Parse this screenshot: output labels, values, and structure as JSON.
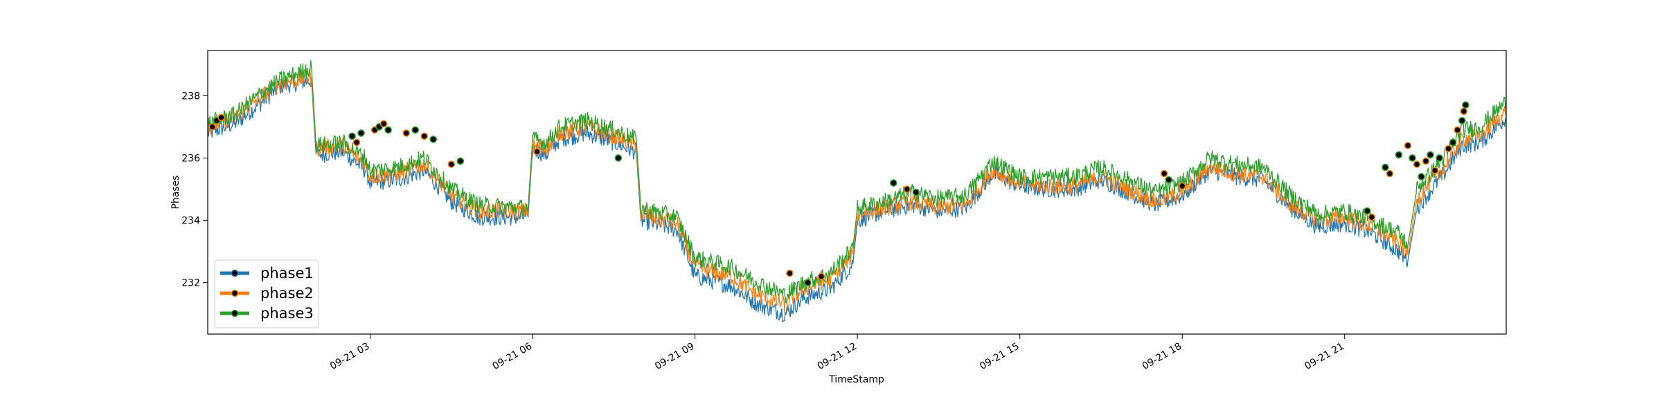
{
  "chart_data": {
    "type": "line",
    "title": "",
    "xlabel": "TimeStamp",
    "ylabel": "Phases",
    "x_range": [
      "09-21 00:00",
      "09-21 23:59"
    ],
    "ylim": [
      230.35,
      239.45
    ],
    "x_ticks": [
      "09-21 03",
      "09-21 06",
      "09-21 09",
      "09-21 12",
      "09-21 15",
      "09-21 18",
      "09-21 21"
    ],
    "y_ticks": [
      232,
      234,
      236,
      238
    ],
    "grid": false,
    "legend_position": "lower-left",
    "series": [
      {
        "name": "phase1",
        "color": "#1f77b4",
        "points": [
          [
            "00:00",
            236.8
          ],
          [
            "00:30",
            237.1
          ],
          [
            "01:00",
            237.8
          ],
          [
            "01:20",
            238.3
          ],
          [
            "01:55",
            238.5
          ],
          [
            "02:00",
            236.1
          ],
          [
            "02:30",
            236.2
          ],
          [
            "02:55",
            235.6
          ],
          [
            "03:00",
            235.2
          ],
          [
            "03:30",
            235.3
          ],
          [
            "04:00",
            235.6
          ],
          [
            "04:30",
            234.6
          ],
          [
            "05:00",
            234.1
          ],
          [
            "05:55",
            234.1
          ],
          [
            "06:00",
            236.3
          ],
          [
            "06:15",
            236.1
          ],
          [
            "06:30",
            236.6
          ],
          [
            "07:00",
            236.8
          ],
          [
            "07:30",
            236.5
          ],
          [
            "07:55",
            236.2
          ],
          [
            "08:00",
            234.0
          ],
          [
            "08:40",
            233.7
          ],
          [
            "09:00",
            232.2
          ],
          [
            "09:40",
            231.9
          ],
          [
            "10:10",
            231.3
          ],
          [
            "10:40",
            231.0
          ],
          [
            "11:00",
            231.5
          ],
          [
            "11:30",
            231.8
          ],
          [
            "11:55",
            232.6
          ],
          [
            "12:00",
            234.0
          ],
          [
            "12:30",
            234.3
          ],
          [
            "13:00",
            234.5
          ],
          [
            "13:30",
            234.3
          ],
          [
            "14:00",
            234.4
          ],
          [
            "14:30",
            235.5
          ],
          [
            "15:00",
            235.1
          ],
          [
            "15:30",
            235.0
          ],
          [
            "16:00",
            235.0
          ],
          [
            "16:30",
            235.3
          ],
          [
            "17:00",
            234.9
          ],
          [
            "17:30",
            234.5
          ],
          [
            "18:00",
            234.8
          ],
          [
            "18:30",
            235.6
          ],
          [
            "19:00",
            235.4
          ],
          [
            "19:30",
            235.3
          ],
          [
            "20:00",
            234.4
          ],
          [
            "20:30",
            233.8
          ],
          [
            "21:00",
            233.9
          ],
          [
            "21:30",
            233.6
          ],
          [
            "22:00",
            233.0
          ],
          [
            "22:10",
            232.7
          ],
          [
            "22:20",
            234.4
          ],
          [
            "22:50",
            235.5
          ],
          [
            "23:10",
            236.4
          ],
          [
            "23:30",
            236.5
          ],
          [
            "23:59",
            237.3
          ]
        ]
      },
      {
        "name": "phase2",
        "color": "#ff7f0e",
        "points": [
          [
            "00:00",
            237.0
          ],
          [
            "00:30",
            237.3
          ],
          [
            "01:00",
            238.0
          ],
          [
            "01:20",
            238.4
          ],
          [
            "01:55",
            238.6
          ],
          [
            "02:00",
            236.3
          ],
          [
            "02:30",
            236.4
          ],
          [
            "02:55",
            235.8
          ],
          [
            "03:00",
            235.4
          ],
          [
            "03:30",
            235.5
          ],
          [
            "04:00",
            235.8
          ],
          [
            "04:30",
            234.8
          ],
          [
            "05:00",
            234.3
          ],
          [
            "05:55",
            234.3
          ],
          [
            "06:00",
            236.4
          ],
          [
            "06:15",
            236.3
          ],
          [
            "06:30",
            236.8
          ],
          [
            "07:00",
            237.0
          ],
          [
            "07:30",
            236.7
          ],
          [
            "07:55",
            236.4
          ],
          [
            "08:00",
            234.2
          ],
          [
            "08:40",
            233.9
          ],
          [
            "09:00",
            232.5
          ],
          [
            "09:40",
            232.2
          ],
          [
            "10:10",
            231.6
          ],
          [
            "10:40",
            231.3
          ],
          [
            "11:00",
            231.8
          ],
          [
            "11:30",
            232.1
          ],
          [
            "11:55",
            232.9
          ],
          [
            "12:00",
            234.2
          ],
          [
            "12:30",
            234.4
          ],
          [
            "13:00",
            234.6
          ],
          [
            "13:30",
            234.4
          ],
          [
            "14:00",
            234.5
          ],
          [
            "14:30",
            235.6
          ],
          [
            "15:00",
            235.2
          ],
          [
            "15:30",
            235.1
          ],
          [
            "16:00",
            235.1
          ],
          [
            "16:30",
            235.4
          ],
          [
            "17:00",
            235.0
          ],
          [
            "17:30",
            234.6
          ],
          [
            "18:00",
            234.9
          ],
          [
            "18:30",
            235.7
          ],
          [
            "19:00",
            235.5
          ],
          [
            "19:30",
            235.4
          ],
          [
            "20:00",
            234.5
          ],
          [
            "20:30",
            234.0
          ],
          [
            "21:00",
            234.1
          ],
          [
            "21:30",
            233.8
          ],
          [
            "22:00",
            233.3
          ],
          [
            "22:10",
            232.9
          ],
          [
            "22:20",
            234.7
          ],
          [
            "22:50",
            235.7
          ],
          [
            "23:10",
            236.6
          ],
          [
            "23:30",
            236.7
          ],
          [
            "23:59",
            237.5
          ]
        ]
      },
      {
        "name": "phase3",
        "color": "#2ca02c",
        "points": [
          [
            "00:00",
            237.1
          ],
          [
            "00:30",
            237.4
          ],
          [
            "01:00",
            238.1
          ],
          [
            "01:20",
            238.5
          ],
          [
            "01:55",
            238.9
          ],
          [
            "02:00",
            236.4
          ],
          [
            "02:30",
            236.5
          ],
          [
            "02:55",
            236.0
          ],
          [
            "03:00",
            235.6
          ],
          [
            "03:30",
            235.7
          ],
          [
            "04:00",
            236.0
          ],
          [
            "04:30",
            235.0
          ],
          [
            "05:00",
            234.5
          ],
          [
            "05:55",
            234.4
          ],
          [
            "06:00",
            236.6
          ],
          [
            "06:15",
            236.5
          ],
          [
            "06:30",
            237.0
          ],
          [
            "07:00",
            237.2
          ],
          [
            "07:30",
            236.9
          ],
          [
            "07:55",
            236.6
          ],
          [
            "08:00",
            234.4
          ],
          [
            "08:40",
            234.1
          ],
          [
            "09:00",
            232.8
          ],
          [
            "09:40",
            232.5
          ],
          [
            "10:10",
            232.0
          ],
          [
            "10:40",
            231.6
          ],
          [
            "11:00",
            232.0
          ],
          [
            "11:30",
            232.3
          ],
          [
            "11:55",
            233.1
          ],
          [
            "12:00",
            234.4
          ],
          [
            "12:30",
            234.6
          ],
          [
            "13:00",
            234.9
          ],
          [
            "13:30",
            234.7
          ],
          [
            "14:00",
            234.8
          ],
          [
            "14:30",
            235.9
          ],
          [
            "15:00",
            235.4
          ],
          [
            "15:30",
            235.4
          ],
          [
            "16:00",
            235.4
          ],
          [
            "16:30",
            235.7
          ],
          [
            "17:00",
            235.3
          ],
          [
            "17:30",
            234.9
          ],
          [
            "18:00",
            235.2
          ],
          [
            "18:30",
            236.0
          ],
          [
            "19:00",
            235.8
          ],
          [
            "19:30",
            235.7
          ],
          [
            "20:00",
            234.8
          ],
          [
            "20:30",
            234.2
          ],
          [
            "21:00",
            234.3
          ],
          [
            "21:30",
            234.0
          ],
          [
            "22:00",
            233.6
          ],
          [
            "22:10",
            233.2
          ],
          [
            "22:20",
            235.0
          ],
          [
            "22:50",
            236.0
          ],
          [
            "23:10",
            236.9
          ],
          [
            "23:30",
            237.0
          ],
          [
            "23:59",
            237.8
          ]
        ]
      }
    ],
    "markers": [
      [
        "00:05",
        237.0
      ],
      [
        "00:10",
        237.2
      ],
      [
        "00:15",
        237.3
      ],
      [
        "02:40",
        236.7
      ],
      [
        "02:45",
        236.5
      ],
      [
        "02:50",
        236.8
      ],
      [
        "03:05",
        236.9
      ],
      [
        "03:10",
        237.0
      ],
      [
        "03:15",
        237.1
      ],
      [
        "03:20",
        236.9
      ],
      [
        "03:40",
        236.8
      ],
      [
        "03:50",
        236.9
      ],
      [
        "04:00",
        236.7
      ],
      [
        "04:10",
        236.6
      ],
      [
        "04:30",
        235.8
      ],
      [
        "04:40",
        235.9
      ],
      [
        "06:05",
        236.2
      ],
      [
        "07:35",
        236.0
      ],
      [
        "10:45",
        232.3
      ],
      [
        "11:05",
        232.0
      ],
      [
        "11:20",
        232.2
      ],
      [
        "12:40",
        235.2
      ],
      [
        "12:55",
        235.0
      ],
      [
        "13:05",
        234.9
      ],
      [
        "17:40",
        235.5
      ],
      [
        "17:45",
        235.3
      ],
      [
        "18:00",
        235.1
      ],
      [
        "21:25",
        234.3
      ],
      [
        "21:30",
        234.1
      ],
      [
        "21:45",
        235.7
      ],
      [
        "21:50",
        235.5
      ],
      [
        "22:00",
        236.1
      ],
      [
        "22:10",
        236.4
      ],
      [
        "22:15",
        236.0
      ],
      [
        "22:20",
        235.8
      ],
      [
        "22:25",
        235.4
      ],
      [
        "22:30",
        235.9
      ],
      [
        "22:35",
        236.1
      ],
      [
        "22:40",
        235.6
      ],
      [
        "22:45",
        236.0
      ],
      [
        "22:55",
        236.3
      ],
      [
        "23:00",
        236.5
      ],
      [
        "23:05",
        236.9
      ],
      [
        "23:10",
        237.2
      ],
      [
        "23:12",
        237.5
      ],
      [
        "23:14",
        237.7
      ]
    ]
  }
}
